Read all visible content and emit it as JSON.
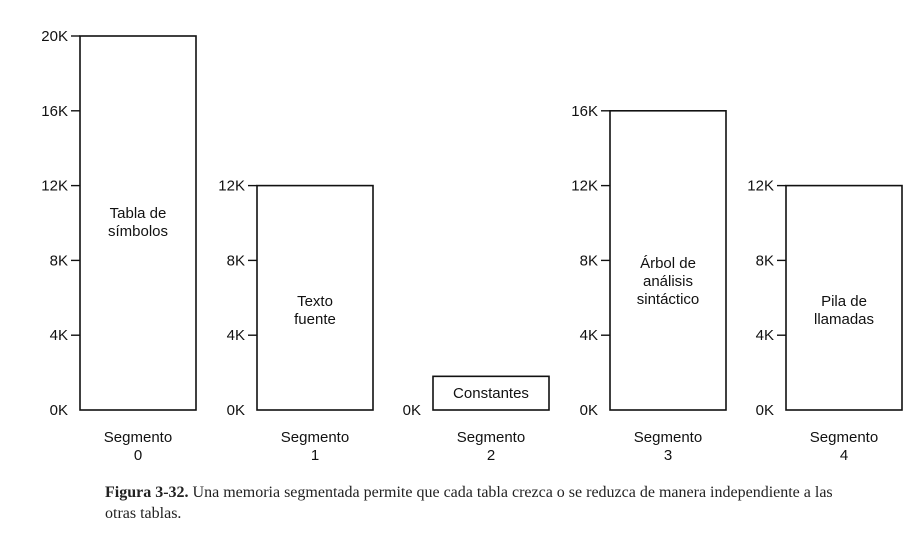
{
  "segments": [
    {
      "label_lines": [
        "Tabla de",
        "símbolos"
      ],
      "name_lines": [
        "Segmento",
        "0"
      ],
      "size_k": 20,
      "ticks": [
        "0K",
        "4K",
        "8K",
        "12K",
        "16K",
        "20K"
      ]
    },
    {
      "label_lines": [
        "Texto",
        "fuente"
      ],
      "name_lines": [
        "Segmento",
        "1"
      ],
      "size_k": 12,
      "ticks": [
        "0K",
        "4K",
        "8K",
        "12K"
      ]
    },
    {
      "label_lines": [
        "Constantes"
      ],
      "name_lines": [
        "Segmento",
        "2"
      ],
      "size_k": 1.8,
      "ticks": [
        "0K"
      ]
    },
    {
      "label_lines": [
        "Árbol de",
        "análisis",
        "sintáctico"
      ],
      "name_lines": [
        "Segmento",
        "3"
      ],
      "size_k": 16,
      "ticks": [
        "0K",
        "4K",
        "8K",
        "12K",
        "16K"
      ]
    },
    {
      "label_lines": [
        "Pila de",
        "llamadas"
      ],
      "name_lines": [
        "Segmento",
        "4"
      ],
      "size_k": 12,
      "ticks": [
        "0K",
        "4K",
        "8K",
        "12K"
      ]
    }
  ],
  "caption": {
    "figure_label": "Figura 3-32.",
    "text": "Una memoria segmentada permite que cada tabla crezca o se reduzca de manera independiente a las otras tablas."
  }
}
